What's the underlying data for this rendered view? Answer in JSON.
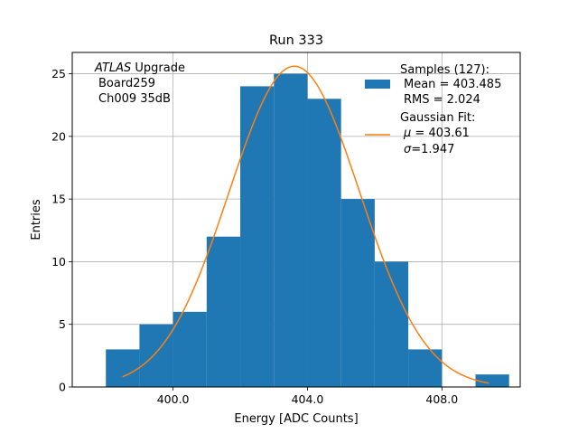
{
  "chart_data": {
    "type": "bar",
    "title": "Run 333",
    "xlabel": "Energy [ADC Counts]",
    "ylabel": "Entries",
    "xlim": [
      397.0,
      410.33
    ],
    "ylim": [
      0,
      26.7
    ],
    "xticks": [
      400.0,
      404.0,
      408.0
    ],
    "xtick_labels": [
      "400.0",
      "404.0",
      "408.0"
    ],
    "yticks": [
      0,
      5,
      10,
      15,
      20,
      25
    ],
    "ytick_labels": [
      "0",
      "5",
      "10",
      "15",
      "20",
      "25"
    ],
    "grid": true,
    "legend_position": "top-right",
    "histogram": {
      "name": "Samples (127):",
      "color": "#1f77b4",
      "bins": [
        {
          "x0": 398.0,
          "x1": 399.0,
          "count": 3
        },
        {
          "x0": 399.0,
          "x1": 400.0,
          "count": 5
        },
        {
          "x0": 400.0,
          "x1": 401.0,
          "count": 6
        },
        {
          "x0": 401.0,
          "x1": 402.0,
          "count": 12
        },
        {
          "x0": 402.0,
          "x1": 403.0,
          "count": 24
        },
        {
          "x0": 403.0,
          "x1": 404.0,
          "count": 25
        },
        {
          "x0": 404.0,
          "x1": 405.0,
          "count": 23
        },
        {
          "x0": 405.0,
          "x1": 406.0,
          "count": 15
        },
        {
          "x0": 406.0,
          "x1": 407.0,
          "count": 10
        },
        {
          "x0": 407.0,
          "x1": 408.0,
          "count": 3
        },
        {
          "x0": 408.0,
          "x1": 409.0,
          "count": 0
        },
        {
          "x0": 409.0,
          "x1": 410.0,
          "count": 1
        }
      ]
    },
    "fit": {
      "name": "Gaussian Fit:",
      "color": "#ff7f0e",
      "type": "gaussian",
      "mu": 403.61,
      "sigma": 1.947,
      "amplitude": 25.6,
      "x_range": [
        398.5,
        409.4
      ]
    },
    "legend": {
      "samples_title": "Samples (127):",
      "samples_mean": "Mean = 403.485",
      "samples_rms": "RMS = 2.024",
      "fit_title": "Gaussian Fit:",
      "fit_mu_symbol": "μ",
      "fit_mu_value": " = 403.61",
      "fit_sigma_symbol": "σ",
      "fit_sigma_value": "=1.947"
    },
    "annotation": {
      "line1_italic": "ATLAS",
      "line1_rest": " Upgrade",
      "line2": "Board259",
      "line3": "Ch009 35dB"
    }
  }
}
